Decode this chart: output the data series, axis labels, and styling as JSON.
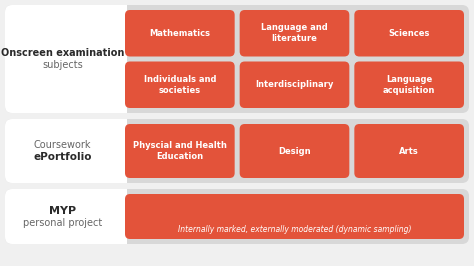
{
  "fig_w": 4.74,
  "fig_h": 2.66,
  "dpi": 100,
  "background_color": "#f0f0f0",
  "outer_bg": "#d8d8d8",
  "white_bg": "#ffffff",
  "red_color": "#e3533a",
  "red_text": "#ffffff",
  "dark_text": "#2a2a2a",
  "gray_text": "#666666",
  "row1": {
    "label_bold": "Onscreen examination",
    "label_normal": "subjects",
    "cells_row1": [
      "Mathematics",
      "Language and\nliterature",
      "Sciences"
    ],
    "cells_row2": [
      "Individuals and\nsocieties",
      "Interdisciplinary",
      "Language\nacquisition"
    ]
  },
  "row2": {
    "label_normal": "Coursework",
    "label_bold": "ePortfolio",
    "cells": [
      "Physcial and Health\nEducation",
      "Design",
      "Arts"
    ]
  },
  "row3": {
    "label_bold": "MYP",
    "label_normal": "personal project",
    "note": "Internally marked, externally moderated (dynamic sampling)"
  }
}
